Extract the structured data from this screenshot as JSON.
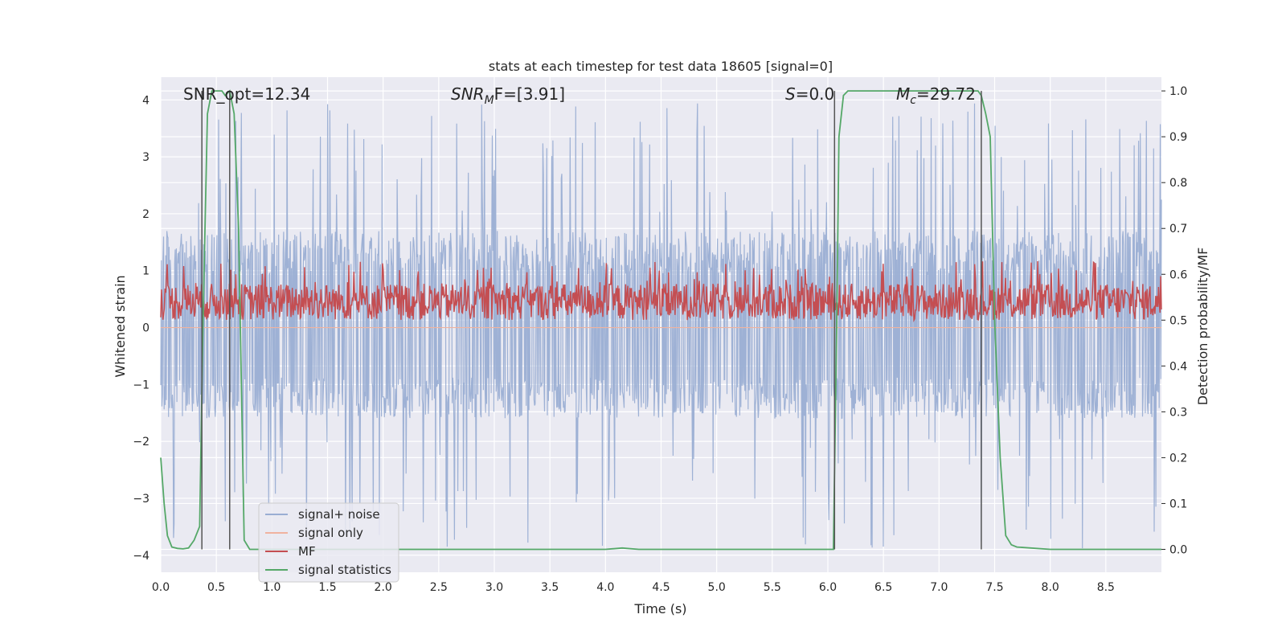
{
  "chart_data": {
    "type": "line",
    "title": "stats at each timestep for test data 18605 [signal=0]",
    "xlabel": "Time (s)",
    "ylabel_left": "Whitened strain",
    "ylabel_right": "Detection probability/MF",
    "xlim": [
      0.0,
      9.0
    ],
    "ylim_left": [
      -4.3,
      4.4
    ],
    "ylim_right": [
      -0.05,
      1.03
    ],
    "xticks": [
      "0.0",
      "0.5",
      "1.0",
      "1.5",
      "2.0",
      "2.5",
      "3.0",
      "3.5",
      "4.0",
      "4.5",
      "5.0",
      "5.5",
      "6.0",
      "6.5",
      "7.0",
      "7.5",
      "8.0",
      "8.5"
    ],
    "yticks_left": [
      "−4",
      "−3",
      "−2",
      "−1",
      "0",
      "1",
      "2",
      "3",
      "4"
    ],
    "yticks_right": [
      "0.0",
      "0.1",
      "0.2",
      "0.3",
      "0.4",
      "0.5",
      "0.6",
      "0.7",
      "0.8",
      "0.9",
      "1.0"
    ],
    "grid": true,
    "legend_position": "lower-left",
    "annotations": {
      "snr_opt": "SNR_opt=12.34",
      "snr_mf_base": "SNR",
      "snr_mf_sub": "M",
      "snr_mf_rest": "F=[3.91]",
      "s_base": "S",
      "s_rest": "=0.0",
      "mc_base": "M",
      "mc_sub": "c",
      "mc_rest": "=29.72"
    },
    "vertical_lines_x": [
      0.37,
      0.62,
      6.06,
      7.38
    ],
    "series": [
      {
        "name": "signal+ noise",
        "color": "#9aaed3",
        "axis": "left",
        "description_values": {
          "typical_range": [
            -1.6,
            1.7
          ],
          "max": 4.0,
          "min": -3.9
        }
      },
      {
        "name": "signal only",
        "color": "#f0b39f",
        "axis": "left",
        "description_values": {
          "constant": 0.0
        }
      },
      {
        "name": "MF",
        "color": "#c44e52",
        "axis": "right",
        "description_values": {
          "typical_range": [
            0.5,
            0.58
          ],
          "max": 0.63,
          "min": 0.51
        }
      },
      {
        "name": "signal statistics",
        "color": "#55a868",
        "axis": "right",
        "x": [
          0.0,
          0.03,
          0.06,
          0.1,
          0.15,
          0.2,
          0.25,
          0.3,
          0.35,
          0.38,
          0.42,
          0.46,
          0.5,
          0.55,
          0.58,
          0.62,
          0.66,
          0.7,
          0.75,
          0.8,
          1.0,
          2.0,
          3.0,
          4.0,
          4.15,
          4.3,
          5.0,
          6.0,
          6.05,
          6.08,
          6.1,
          6.14,
          6.18,
          6.5,
          7.0,
          7.35,
          7.38,
          7.42,
          7.46,
          7.5,
          7.55,
          7.6,
          7.65,
          7.7,
          8.0,
          9.0
        ],
        "y": [
          0.2,
          0.1,
          0.03,
          0.005,
          0.002,
          0.001,
          0.003,
          0.02,
          0.05,
          0.5,
          0.95,
          1.0,
          1.0,
          1.0,
          0.99,
          1.0,
          0.95,
          0.7,
          0.02,
          0.0,
          0.0,
          0.0,
          0.0,
          0.0,
          0.003,
          0.0,
          0.0,
          0.0,
          0.0,
          0.5,
          0.9,
          0.99,
          1.0,
          1.0,
          1.0,
          1.0,
          0.99,
          0.95,
          0.9,
          0.5,
          0.2,
          0.03,
          0.01,
          0.005,
          0.0,
          0.0
        ]
      }
    ]
  }
}
